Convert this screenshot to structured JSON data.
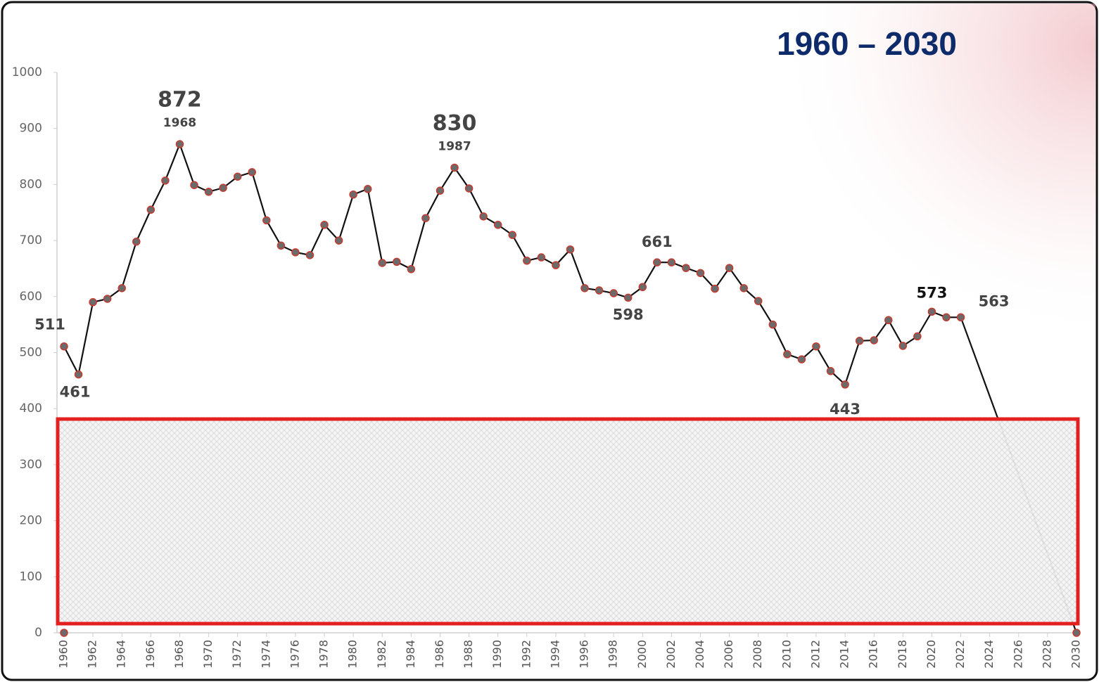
{
  "chart_data": {
    "type": "line",
    "title": "1960 – 2030",
    "x": [
      1960,
      1961,
      1962,
      1963,
      1964,
      1965,
      1966,
      1967,
      1968,
      1969,
      1970,
      1971,
      1972,
      1973,
      1974,
      1975,
      1976,
      1977,
      1978,
      1979,
      1980,
      1981,
      1982,
      1983,
      1984,
      1985,
      1986,
      1987,
      1988,
      1989,
      1990,
      1991,
      1992,
      1993,
      1994,
      1995,
      1996,
      1997,
      1998,
      1999,
      2000,
      2001,
      2002,
      2003,
      2004,
      2005,
      2006,
      2007,
      2008,
      2009,
      2010,
      2011,
      2012,
      2013,
      2014,
      2015,
      2016,
      2017,
      2018,
      2019,
      2020,
      2021,
      2022,
      2030
    ],
    "series": [
      {
        "color": "#111111",
        "values": [
          511,
          461,
          590,
          596,
          615,
          698,
          755,
          807,
          872,
          799,
          787,
          794,
          814,
          822,
          736,
          691,
          679,
          674,
          728,
          700,
          782,
          792,
          660,
          662,
          649,
          740,
          789,
          830,
          793,
          743,
          728,
          710,
          664,
          670,
          656,
          684,
          615,
          611,
          606,
          598,
          617,
          661,
          661,
          651,
          642,
          614,
          651,
          615,
          592,
          550,
          497,
          488,
          511,
          467,
          443,
          521,
          522,
          558,
          512,
          529,
          573,
          563,
          563,
          0
        ]
      },
      {
        "color": "#111111",
        "x": [
          1960
        ],
        "values": [
          0
        ]
      }
    ],
    "annotations": [
      {
        "x": 1960,
        "label": "511"
      },
      {
        "x": 1961,
        "label": "461"
      },
      {
        "x": 1968,
        "label": "872",
        "sub": "1968"
      },
      {
        "x": 1987,
        "label": "830",
        "sub": "1987"
      },
      {
        "x": 2001,
        "label": "661"
      },
      {
        "x": 1999,
        "label": "598"
      },
      {
        "x": 2014,
        "label": "443"
      },
      {
        "x": 2020,
        "label": "573"
      },
      {
        "x": 2022,
        "label": "563"
      }
    ],
    "xlim": [
      1960,
      2030
    ],
    "xticks": [
      1960,
      1962,
      1964,
      1966,
      1968,
      1970,
      1972,
      1974,
      1976,
      1978,
      1980,
      1982,
      1984,
      1986,
      1988,
      1990,
      1992,
      1994,
      1996,
      1998,
      2000,
      2002,
      2004,
      2006,
      2008,
      2010,
      2012,
      2014,
      2016,
      2018,
      2020,
      2022,
      2024,
      2026,
      2028,
      2030
    ],
    "ylim": [
      0,
      1000
    ],
    "yticks": [
      0,
      100,
      200,
      300,
      400,
      500,
      600,
      700,
      800,
      900,
      1000
    ],
    "grid": false
  }
}
